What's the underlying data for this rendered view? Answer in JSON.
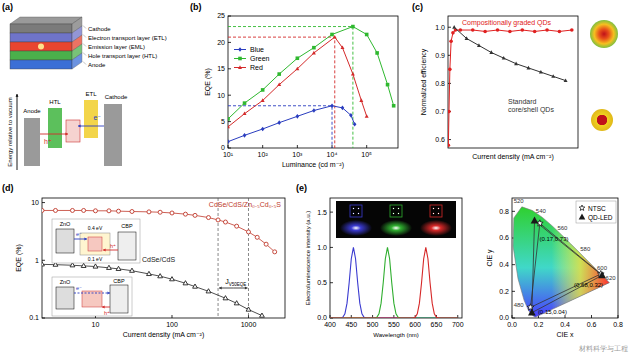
{
  "panel_labels": [
    "(a)",
    "(b)",
    "(c)",
    "(d)",
    "(e)"
  ],
  "diagram": {
    "layers": [
      "Cathode",
      "Electron transport layer (ETL)",
      "Emission layer (EML)",
      "Hole transport layer (HTL)",
      "Anode"
    ],
    "energy_axis": "Energy relative to vacuum",
    "energy_labels": [
      "Anode",
      "HTL",
      "ETL",
      "Cathode"
    ],
    "carriers": [
      "h⁺",
      "e⁻"
    ]
  },
  "watermark": "材料科学与工程",
  "chart_data": [
    {
      "type": "line",
      "x_label": "Luminance (cd m⁻²)",
      "y_label": "EQE (%)",
      "log": "x",
      "xlim": [
        10,
        800000
      ],
      "ylim": [
        0,
        25
      ],
      "xticks": [
        {
          "value": 10,
          "label": "10¹"
        },
        {
          "value": 100,
          "label": "10²"
        },
        {
          "value": 1000,
          "label": "10³"
        },
        {
          "value": 10000,
          "label": "10⁴"
        },
        {
          "value": 100000,
          "label": "10⁵"
        }
      ],
      "yticks": [
        0,
        5,
        10,
        15,
        20,
        25
      ],
      "legend": "upper left",
      "series": [
        {
          "name": "Blue",
          "color": "#2a3dbf",
          "marker": "diamond",
          "x": [
            10,
            30,
            100,
            300,
            1000,
            3000,
            10000,
            20000,
            35000,
            45000
          ],
          "values": [
            1.2,
            2.4,
            3.6,
            4.8,
            6.0,
            7.1,
            8.0,
            7.6,
            6.2,
            4.5
          ]
        },
        {
          "name": "Green",
          "color": "#2fb82f",
          "marker": "square",
          "x": [
            10,
            30,
            100,
            300,
            1000,
            3000,
            10000,
            40000,
            100000,
            200000,
            400000,
            600000
          ],
          "values": [
            5.5,
            8.5,
            11,
            14,
            17,
            19,
            21.5,
            23,
            21.5,
            18,
            12,
            8
          ]
        },
        {
          "name": "Red",
          "color": "#d42a2a",
          "marker": "triangle",
          "x": [
            10,
            30,
            100,
            300,
            1000,
            3000,
            12000,
            20000,
            40000,
            70000,
            100000
          ],
          "values": [
            4,
            6.5,
            9,
            12,
            15,
            18,
            21,
            19,
            14,
            9,
            6
          ]
        }
      ],
      "peaks": [
        {
          "x": 10000,
          "y": 8
        },
        {
          "x": 40000,
          "y": 23
        },
        {
          "x": 12000,
          "y": 21
        }
      ]
    },
    {
      "type": "line",
      "x_label": "Current density (mA cm⁻²)",
      "y_label": "Normalized efficiency",
      "xlim": [
        0,
        105
      ],
      "ylim": [
        0.57,
        1.04
      ],
      "yticks": [
        0.6,
        0.7,
        0.8,
        0.9,
        {
          "value": 1,
          "label": "1.0"
        }
      ],
      "tick_labels": "y",
      "series": [
        {
          "name": "Compositionally graded QDs",
          "color": "#e02020",
          "marker": "circle",
          "x": [
            0.3,
            0.8,
            1.5,
            2.5,
            4,
            6,
            10,
            20,
            30,
            40,
            50,
            60,
            70,
            80,
            90,
            100
          ],
          "values": [
            0.58,
            0.7,
            0.85,
            0.95,
            0.98,
            0.99,
            0.99,
            0.99,
            0.985,
            0.99,
            0.985,
            0.99,
            0.985,
            0.99,
            0.985,
            0.99
          ]
        },
        {
          "name": "Standard core/shell QDs",
          "color": "#333333",
          "marker": "triangle",
          "x": [
            5,
            15,
            25,
            35,
            45,
            55,
            65,
            75,
            85,
            95
          ],
          "values": [
            1.0,
            0.96,
            0.935,
            0.91,
            0.89,
            0.87,
            0.855,
            0.84,
            0.825,
            0.81
          ]
        }
      ]
    },
    {
      "type": "line",
      "x_label": "Current density (mA cm⁻²)",
      "y_label": "EQE (%)",
      "log": true,
      "xlim": [
        2,
        3000
      ],
      "ylim": [
        0.1,
        12
      ],
      "xticks": [
        10,
        100,
        1000
      ],
      "yticks": [
        0.1,
        1,
        10
      ],
      "series": [
        {
          "name": "CdSe/CdS/Zn₀.₅Cd₀.₅S",
          "color": "#c0392b",
          "marker": "open_circle",
          "x": [
            2,
            3,
            5,
            7,
            10,
            15,
            20,
            30,
            50,
            70,
            100,
            150,
            200,
            300,
            400,
            500,
            700,
            1000,
            1300,
            1700,
            2200
          ],
          "values": [
            7.3,
            7.3,
            7.3,
            7.3,
            7.2,
            7.2,
            7.1,
            7.0,
            6.9,
            6.8,
            6.6,
            6.3,
            6.0,
            5.5,
            5.0,
            4.6,
            3.9,
            3.1,
            2.5,
            1.9,
            1.4
          ]
        },
        {
          "name": "CdSe/CdS",
          "color": "#222222",
          "marker": "open_triangle",
          "x": [
            2,
            3,
            5,
            7,
            10,
            15,
            20,
            30,
            50,
            70,
            100,
            150,
            200,
            300,
            500,
            700,
            1000,
            1500
          ],
          "values": [
            0.85,
            0.84,
            0.82,
            0.8,
            0.78,
            0.74,
            0.71,
            0.66,
            0.58,
            0.53,
            0.47,
            0.4,
            0.35,
            0.29,
            0.22,
            0.18,
            0.14,
            0.11
          ]
        }
      ],
      "vlines": [
        400,
        1000
      ],
      "vline_label": "J",
      "vline_sub": "V50EQE",
      "annotations": [
        "ZnO",
        "CBP",
        "0.4 eV",
        "0.1 eV",
        "e⁻",
        "h⁺",
        "ZnO",
        "CBP",
        "e⁻",
        "h⁺"
      ]
    },
    {
      "type": "line",
      "x_label": "Wavelength (nm)",
      "y_label": "Electroluminescence intensity (a.u.)",
      "xlim": [
        400,
        710
      ],
      "ylim": [
        0,
        1.7
      ],
      "xticks": [
        400,
        450,
        500,
        550,
        600,
        650,
        700
      ],
      "yticks": [
        {
          "value": 0,
          "label": "0.0"
        },
        0.5,
        {
          "value": 1,
          "label": "1.0"
        },
        1.5
      ],
      "series": [
        {
          "color": "#3a3ad0",
          "x": [
            400,
            420,
            425,
            430,
            435,
            440,
            445,
            450,
            455,
            460,
            465,
            470,
            475,
            480,
            485,
            490,
            700
          ],
          "values": [
            0,
            0,
            0,
            0.01,
            0.06,
            0.21,
            0.5,
            0.84,
            1,
            0.84,
            0.5,
            0.21,
            0.06,
            0.01,
            0,
            0,
            0
          ]
        },
        {
          "color": "#2fae2f",
          "x": [
            400,
            500,
            505,
            510,
            515,
            520,
            525,
            530,
            535,
            540,
            545,
            550,
            555,
            560,
            565,
            570,
            700
          ],
          "values": [
            0,
            0,
            0,
            0.01,
            0.06,
            0.21,
            0.5,
            0.84,
            1,
            0.84,
            0.5,
            0.21,
            0.06,
            0.01,
            0,
            0,
            0
          ]
        },
        {
          "color": "#d62828",
          "x": [
            400,
            590,
            595,
            600,
            605,
            610,
            615,
            620,
            625,
            630,
            635,
            640,
            645,
            650,
            655,
            660,
            700
          ],
          "values": [
            0,
            0,
            0,
            0.01,
            0.06,
            0.21,
            0.5,
            0.84,
            1,
            0.84,
            0.5,
            0.21,
            0.06,
            0.01,
            0,
            0,
            0
          ]
        }
      ]
    },
    {
      "type": "scatter",
      "x_label": "CIE x",
      "y_label": "CIE y",
      "xlim": [
        0,
        0.8
      ],
      "ylim": [
        0,
        0.9
      ],
      "xticks": [
        {
          "value": 0,
          "label": "0.0"
        },
        0.2,
        0.4,
        0.6,
        0.8
      ],
      "yticks": [
        {
          "value": 0,
          "label": "0.0"
        },
        0.2,
        0.4,
        0.6,
        0.8
      ],
      "legend": "upper right",
      "series": [
        {
          "name": "NTSC",
          "color": "#ffffff",
          "marker": "star",
          "line_style": "solid",
          "x": [
            0.67,
            0.21,
            0.14
          ],
          "values": [
            0.33,
            0.71,
            0.08
          ]
        },
        {
          "name": "QD-LED",
          "color": "#1a1a1a",
          "marker": "triangle",
          "line_style": "solid",
          "x": [
            0.68,
            0.17,
            0.15
          ],
          "values": [
            0.32,
            0.73,
            0.04
          ],
          "value_labels": [
            "(0.68,0.32)",
            "(0.17,0.73)",
            "(0.15,0.04)"
          ]
        }
      ],
      "locus": {
        "x": [
          0.1741,
          0.144,
          0.1241,
          0.0913,
          0.0454,
          0.0082,
          0.0139,
          0.0743,
          0.1547,
          0.2296,
          0.3016,
          0.3731,
          0.4441,
          0.5125,
          0.5752,
          0.627,
          0.6915,
          0.7347
        ],
        "y": [
          0.005,
          0.0297,
          0.0578,
          0.1327,
          0.295,
          0.5384,
          0.7502,
          0.8338,
          0.8059,
          0.7543,
          0.6923,
          0.6245,
          0.5547,
          0.4866,
          0.4242,
          0.3725,
          0.3083,
          0.2653
        ],
        "wavelengths": [
          380,
          460,
          470,
          480,
          490,
          500,
          510,
          520,
          530,
          540,
          550,
          560,
          570,
          580,
          590,
          600,
          620,
          700
        ],
        "labels": [
          480,
          520,
          540,
          560,
          580,
          600,
          620
        ]
      }
    }
  ]
}
